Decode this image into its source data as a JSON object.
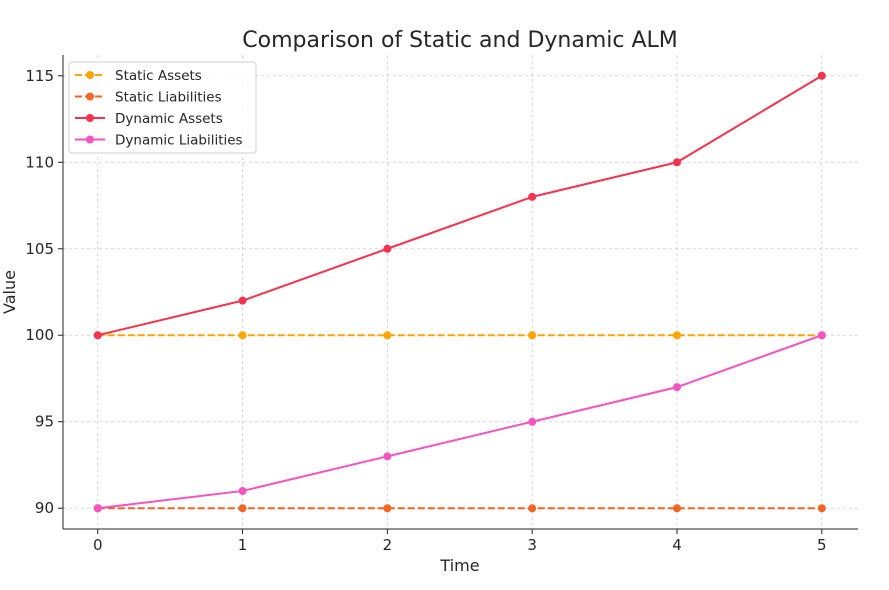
{
  "chart_data": {
    "type": "line",
    "title": "Comparison of Static and Dynamic ALM",
    "xlabel": "Time",
    "ylabel": "Value",
    "x": [
      0,
      1,
      2,
      3,
      4,
      5
    ],
    "xlim": [
      -0.24,
      5.25
    ],
    "ylim": [
      88.8,
      116.2
    ],
    "xticks": [
      "0",
      "1",
      "2",
      "3",
      "4",
      "5"
    ],
    "yticks": [
      "90",
      "95",
      "100",
      "105",
      "110",
      "115"
    ],
    "grid": true,
    "legend_position": "top-left",
    "series": [
      {
        "name": "Static Assets",
        "values": [
          100,
          100,
          100,
          100,
          100,
          100
        ],
        "color": "#FFA500",
        "dash": true
      },
      {
        "name": "Static Liabilities",
        "values": [
          90,
          90,
          90,
          90,
          90,
          90
        ],
        "color": "#F26522",
        "dash": true
      },
      {
        "name": "Dynamic Assets",
        "values": [
          100,
          102,
          105,
          108,
          110,
          115
        ],
        "color": "#F5334F",
        "dash": false
      },
      {
        "name": "Dynamic Liabilities",
        "values": [
          90,
          91,
          93,
          95,
          97,
          100
        ],
        "color": "#F553C0",
        "dash": false
      }
    ]
  }
}
